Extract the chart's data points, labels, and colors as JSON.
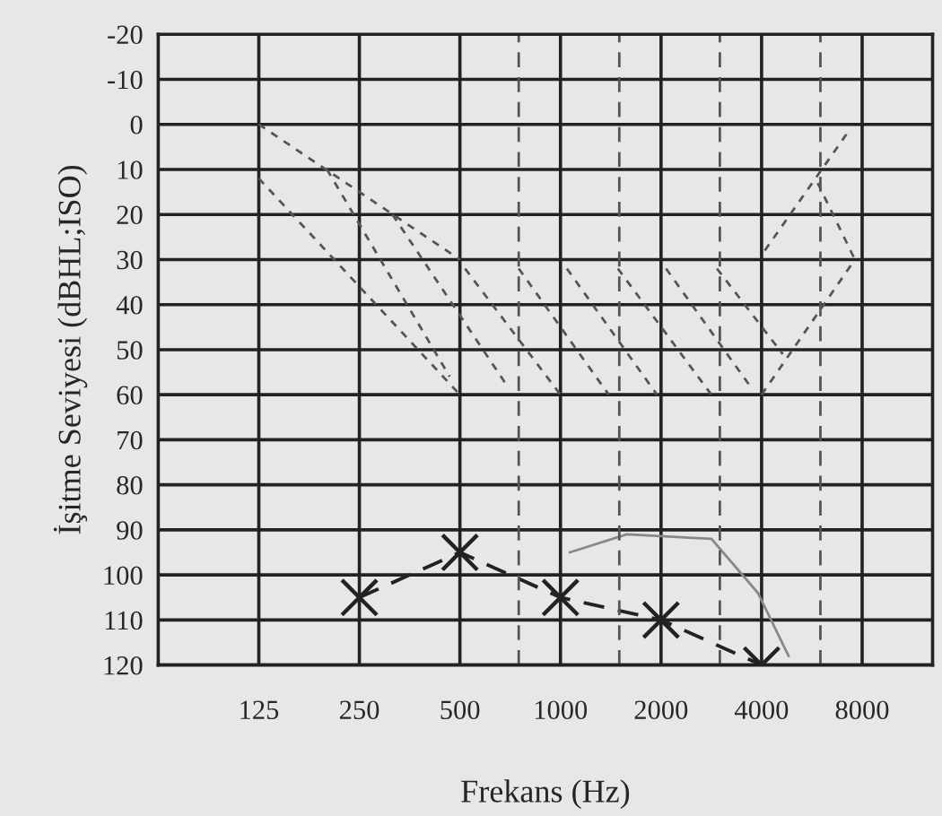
{
  "chart_data": {
    "type": "line",
    "xlabel": "Frekans (Hz)",
    "ylabel": "İşitme Seviyesi (dBHL;ISO)",
    "log": "x",
    "grid": true,
    "xlim": [
      62.5,
      13000
    ],
    "xticks": [
      125,
      250,
      500,
      1000,
      2000,
      4000,
      8000
    ],
    "ylim": [
      120,
      -20
    ],
    "yticks": [
      -20,
      -10,
      0,
      10,
      20,
      30,
      40,
      50,
      60,
      70,
      80,
      90,
      100,
      110,
      120
    ],
    "ref_lines": [
      {
        "axis": "x",
        "value": 750,
        "line_style": "dashed",
        "color": "#555555"
      },
      {
        "axis": "x",
        "value": 1500,
        "line_style": "dashed",
        "color": "#555555"
      },
      {
        "axis": "x",
        "value": 3000,
        "line_style": "dashed",
        "color": "#555555"
      },
      {
        "axis": "x",
        "value": 6000,
        "line_style": "dashed",
        "color": "#555555"
      }
    ],
    "series": [
      {
        "x": [
          250,
          500,
          1000,
          2000,
          4000
        ],
        "values": [
          105,
          95,
          105,
          110,
          120
        ],
        "color": "#222222",
        "marker": "cross",
        "line_style": "dashed"
      },
      {
        "x": [
          1066,
          1580,
          2830,
          3900,
          4820
        ],
        "values": [
          95,
          91,
          92,
          104,
          118
        ],
        "color": "#888888",
        "line_style": "solid"
      },
      {
        "x": [
          125,
          500
        ],
        "values": [
          0,
          30
        ],
        "color": "#555555",
        "line_style": "dotted"
      },
      {
        "x": [
          125,
          500
        ],
        "values": [
          12,
          60
        ],
        "color": "#555555",
        "line_style": "dotted"
      },
      {
        "x": [
          200,
          466
        ],
        "values": [
          10,
          56
        ],
        "color": "#555555",
        "line_style": "dotted"
      },
      {
        "x": [
          314,
          692
        ],
        "values": [
          20,
          58
        ],
        "color": "#555555",
        "line_style": "dotted"
      },
      {
        "x": [
          518,
          1000
        ],
        "values": [
          32,
          60
        ],
        "color": "#555555",
        "line_style": "dotted"
      },
      {
        "x": [
          750,
          1395
        ],
        "values": [
          32,
          60
        ],
        "color": "#555555",
        "line_style": "dotted"
      },
      {
        "x": [
          1045,
          1945
        ],
        "values": [
          32,
          60
        ],
        "color": "#555555",
        "line_style": "dotted"
      },
      {
        "x": [
          1485,
          2830
        ],
        "values": [
          32,
          60
        ],
        "color": "#555555",
        "line_style": "dotted"
      },
      {
        "x": [
          2070,
          3770
        ],
        "values": [
          32,
          59
        ],
        "color": "#555555",
        "line_style": "dotted"
      },
      {
        "x": [
          2940,
          4630
        ],
        "values": [
          32,
          51
        ],
        "color": "#555555",
        "line_style": "dotted"
      },
      {
        "x": [
          4000,
          7610
        ],
        "values": [
          60,
          30
        ],
        "color": "#555555",
        "line_style": "dotted"
      },
      {
        "x": [
          4090,
          7370
        ],
        "values": [
          28,
          1
        ],
        "color": "#555555",
        "line_style": "dotted"
      },
      {
        "x": [
          5890,
          7610
        ],
        "values": [
          13,
          30
        ],
        "color": "#555555",
        "line_style": "dotted"
      }
    ]
  }
}
